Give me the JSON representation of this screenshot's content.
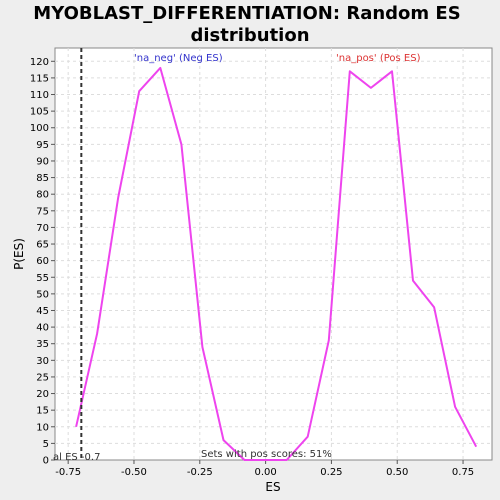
{
  "chart_data": {
    "type": "line",
    "title_line1": "MYOBLAST_DIFFERENTIATION: Random ES",
    "title_line2": "distribution",
    "xlabel": "ES",
    "ylabel": "P(ES)",
    "xlim": [
      -0.8,
      0.86
    ],
    "ylim": [
      0,
      124
    ],
    "x_ticks": [
      -0.75,
      -0.5,
      -0.25,
      0.0,
      0.25,
      0.5,
      0.75
    ],
    "x_tick_labels": [
      "-0.75",
      "-0.50",
      "-0.25",
      "0.00",
      "0.25",
      "0.50",
      "0.75"
    ],
    "y_ticks": [
      0,
      5,
      10,
      15,
      20,
      25,
      30,
      35,
      40,
      45,
      50,
      55,
      60,
      65,
      70,
      75,
      80,
      85,
      90,
      95,
      100,
      105,
      110,
      115,
      120
    ],
    "grid": true,
    "series": [
      {
        "color": "#ee44ee",
        "x": [
          -0.72,
          -0.64,
          -0.56,
          -0.48,
          -0.4,
          -0.32,
          -0.24,
          -0.16,
          -0.08,
          0.0,
          0.08,
          0.16,
          0.24,
          0.32,
          0.4,
          0.48,
          0.56,
          0.64,
          0.72,
          0.8
        ],
        "y": [
          10,
          38,
          79,
          111,
          118,
          95,
          34,
          6,
          0,
          0,
          0,
          7,
          36,
          117,
          112,
          117,
          54,
          46,
          16,
          4
        ]
      }
    ],
    "vline": {
      "x": -0.7,
      "color": "#333333",
      "style": "dashed"
    },
    "annotations": {
      "neg": {
        "text": "'na_neg' (Neg ES)",
        "color": "#3333cc"
      },
      "pos": {
        "text": "'na_pos' (Pos ES)",
        "color": "#dd3333"
      },
      "actual": {
        "text": "al ES -0.7",
        "color": "#333333"
      },
      "pos_scores": {
        "text": "Sets with pos scores: 51%",
        "color": "#333333"
      }
    },
    "colors": {
      "background": "#eeeeee",
      "plot_background": "#ffffff",
      "grid": "#dddddd"
    }
  }
}
